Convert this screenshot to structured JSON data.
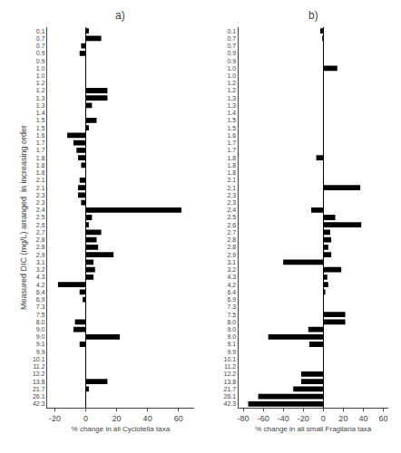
{
  "chart_data": [
    {
      "type": "bar",
      "orientation": "horizontal",
      "title": "a)",
      "categories": [
        "0.1",
        "0.7",
        "0.7",
        "0.9",
        "0.9",
        "1.0",
        "1.0",
        "1.2",
        "1.2",
        "1.3",
        "1.3",
        "1.4",
        "1.5",
        "1.5",
        "1.6",
        "1.7",
        "1.7",
        "1.8",
        "1.8",
        "1.8",
        "2.1",
        "2.1",
        "2.3",
        "2.3",
        "2.4",
        "2.5",
        "2.6",
        "2.7",
        "2.8",
        "2.8",
        "2.9",
        "3.1",
        "3.2",
        "4.3",
        "4.2",
        "6.4",
        "6.9",
        "7.3",
        "7.5",
        "8.0",
        "9.0",
        "9.0",
        "9.1",
        "9.9",
        "10.1",
        "11.2",
        "12.2",
        "13.8",
        "21.7",
        "26.1",
        "42.3"
      ],
      "values": [
        2,
        10,
        -3,
        -4,
        0,
        0,
        0,
        0,
        14,
        14,
        4,
        0,
        7,
        2,
        -12,
        -8,
        -6,
        -5,
        -3,
        0,
        -4,
        -5,
        -5,
        -3,
        62,
        4,
        2,
        10,
        7,
        8,
        18,
        5,
        6,
        5,
        -18,
        -4,
        -2,
        0,
        0,
        -7,
        -8,
        22,
        -4,
        0,
        0,
        0,
        0,
        14,
        2,
        0,
        0
      ],
      "color": "black",
      "xlabel": "% change in all Cyclotella taxa",
      "ylabel": "Measured DIC (mg/L) arranged  in increasing order",
      "xlim": [
        -25,
        70
      ],
      "xticks": [
        -20,
        0,
        20,
        40,
        60
      ],
      "grid": false
    },
    {
      "type": "bar",
      "orientation": "horizontal",
      "title": "b)",
      "categories": [
        "0.1",
        "0.7",
        "0.7",
        "0.9",
        "0.9",
        "1.0",
        "1.0",
        "1.2",
        "1.2",
        "1.3",
        "1.3",
        "1.4",
        "1.5",
        "1.5",
        "1.6",
        "1.7",
        "1.7",
        "1.8",
        "1.8",
        "1.8",
        "2.1",
        "2.1",
        "2.3",
        "2.3",
        "2.4",
        "2.5",
        "2.6",
        "2.7",
        "2.8",
        "2.8",
        "2.9",
        "3.1",
        "3.2",
        "4.3",
        "4.2",
        "6.4",
        "6.9",
        "7.3",
        "7.5",
        "8.0",
        "9.0",
        "9.0",
        "9.1",
        "9.9",
        "10.1",
        "11.2",
        "12.2",
        "13.8",
        "21.7",
        "26.1",
        "42.3"
      ],
      "values": [
        -3,
        -1,
        0,
        0,
        0,
        14,
        0,
        0,
        0,
        0,
        0,
        0,
        0,
        0,
        0,
        0,
        0,
        -7,
        0,
        0,
        0,
        37,
        0,
        0,
        -12,
        12,
        38,
        7,
        8,
        5,
        8,
        -40,
        18,
        4,
        5,
        2,
        0,
        0,
        22,
        22,
        -15,
        -55,
        -14,
        0,
        0,
        0,
        -22,
        -22,
        -30,
        -65,
        -75
      ],
      "color": "black",
      "xlabel": "% change in all small Fragilaria taxa",
      "xlim": [
        -85,
        65
      ],
      "xticks": [
        -80,
        -60,
        -40,
        -20,
        0,
        20,
        40,
        60
      ],
      "grid": false
    }
  ]
}
